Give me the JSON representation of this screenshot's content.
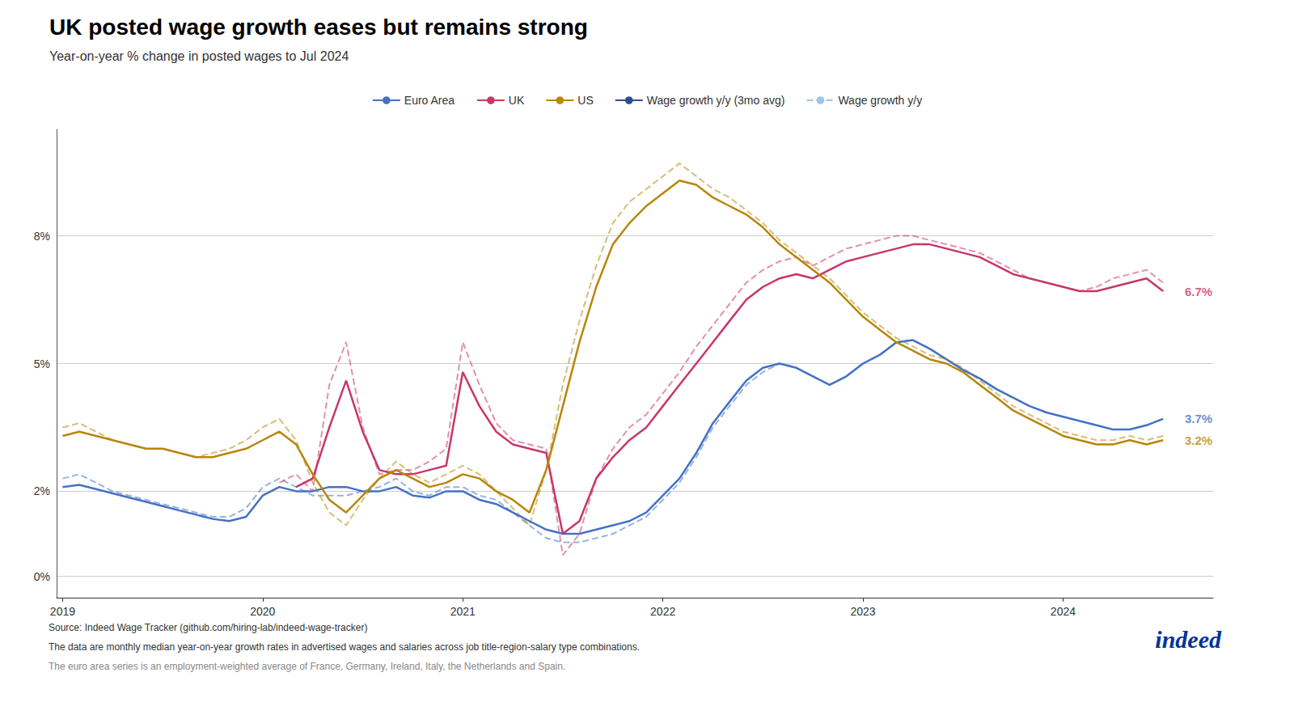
{
  "chart_data": {
    "type": "line",
    "title": "UK posted wage growth eases but remains strong",
    "subtitle": "Year-on-year % change in posted wages to Jul 2024",
    "footnotes": [
      "Source: Indeed Wage Tracker (github.com/hiring-lab/indeed-wage-tracker)",
      "The data are monthly median year-on-year growth rates in advertised wages and salaries across job title-region-salary type combinations.",
      "The euro area series is an employment-weighted average of France, Germany, Ireland, Italy, the Netherlands and Spain."
    ],
    "logo": "indeed",
    "grid": true,
    "legend": "top",
    "xlim": [
      2018.97,
      2024.75
    ],
    "xticks": [
      2019,
      2020,
      2021,
      2022,
      2023,
      2024
    ],
    "ylim": [
      -0.5,
      10.5
    ],
    "yticks": [
      {
        "value": 0,
        "label": "0%"
      },
      {
        "value": 2,
        "label": "2%"
      },
      {
        "value": 5,
        "label": "5%"
      },
      {
        "value": 8,
        "label": "8%"
      }
    ],
    "series": [
      {
        "name": "Euro Area",
        "color": "#4472c4",
        "line_style": "solid",
        "x": [
          2019,
          2019.083,
          2019.167,
          2019.25,
          2019.333,
          2019.417,
          2019.5,
          2019.583,
          2019.667,
          2019.75,
          2019.833,
          2019.917,
          2020,
          2020.083,
          2020.167,
          2020.25,
          2020.333,
          2020.417,
          2020.5,
          2020.583,
          2020.667,
          2020.75,
          2020.833,
          2020.917,
          2021,
          2021.083,
          2021.167,
          2021.25,
          2021.333,
          2021.417,
          2021.5,
          2021.583,
          2021.667,
          2021.75,
          2021.833,
          2021.917,
          2022,
          2022.083,
          2022.167,
          2022.25,
          2022.333,
          2022.417,
          2022.5,
          2022.583,
          2022.667,
          2022.75,
          2022.833,
          2022.917,
          2023,
          2023.083,
          2023.167,
          2023.25,
          2023.333,
          2023.417,
          2023.5,
          2023.583,
          2023.667,
          2023.75,
          2023.833,
          2023.917,
          2024,
          2024.083,
          2024.167,
          2024.25,
          2024.333,
          2024.417,
          2024.5
        ],
        "values": [
          2.1,
          2.15,
          2.05,
          1.95,
          1.85,
          1.75,
          1.65,
          1.55,
          1.45,
          1.35,
          1.3,
          1.4,
          1.9,
          2.1,
          2.0,
          2.0,
          2.1,
          2.1,
          2.0,
          2.0,
          2.1,
          1.9,
          1.85,
          2.0,
          2.0,
          1.8,
          1.7,
          1.5,
          1.3,
          1.1,
          1.0,
          1.0,
          1.1,
          1.2,
          1.3,
          1.5,
          1.9,
          2.3,
          2.9,
          3.6,
          4.1,
          4.6,
          4.9,
          5.0,
          4.9,
          4.7,
          4.5,
          4.7,
          5.0,
          5.2,
          5.5,
          5.55,
          5.35,
          5.1,
          4.85,
          4.65,
          4.4,
          4.2,
          4.0,
          3.85,
          3.75,
          3.65,
          3.55,
          3.45,
          3.45,
          3.55,
          3.7
        ]
      },
      {
        "name": "Euro Area",
        "color": "#4472c4",
        "line_style": "dashed",
        "x": [
          2019,
          2019.083,
          2019.167,
          2019.25,
          2019.333,
          2019.417,
          2019.5,
          2019.583,
          2019.667,
          2019.75,
          2019.833,
          2019.917,
          2020,
          2020.083,
          2020.167,
          2020.25,
          2020.333,
          2020.417,
          2020.5,
          2020.583,
          2020.667,
          2020.75,
          2020.833,
          2020.917,
          2021,
          2021.083,
          2021.167,
          2021.25,
          2021.333,
          2021.417,
          2021.5,
          2021.583,
          2021.667,
          2021.75,
          2021.833,
          2021.917,
          2022,
          2022.083,
          2022.167,
          2022.25,
          2022.333,
          2022.417,
          2022.5,
          2022.583,
          2022.667,
          2022.75,
          2022.833,
          2022.917,
          2023,
          2023.083,
          2023.167,
          2023.25,
          2023.333,
          2023.417,
          2023.5,
          2023.583,
          2023.667,
          2023.75,
          2023.833,
          2023.917,
          2024,
          2024.083,
          2024.167,
          2024.25,
          2024.333,
          2024.417,
          2024.5
        ],
        "values": [
          2.3,
          2.4,
          2.2,
          2.0,
          1.9,
          1.8,
          1.7,
          1.6,
          1.5,
          1.4,
          1.4,
          1.6,
          2.1,
          2.3,
          2.1,
          1.9,
          1.9,
          1.9,
          2.0,
          2.1,
          2.3,
          2.0,
          1.9,
          2.1,
          2.1,
          1.9,
          1.8,
          1.5,
          1.2,
          0.9,
          0.8,
          0.8,
          0.9,
          1.0,
          1.2,
          1.4,
          1.8,
          2.2,
          2.8,
          3.5,
          4.0,
          4.5,
          4.8,
          5.0,
          4.9,
          4.7,
          4.5,
          4.7,
          5.0,
          5.2,
          5.5,
          5.55,
          5.35,
          5.1,
          4.85,
          4.65,
          4.4,
          4.2,
          4.0,
          3.85,
          3.75,
          3.65,
          3.55,
          3.45,
          3.45,
          3.55,
          3.7
        ]
      },
      {
        "name": "UK",
        "color": "#c9366b",
        "line_style": "solid",
        "x": [
          2020.167,
          2020.25,
          2020.333,
          2020.417,
          2020.5,
          2020.583,
          2020.667,
          2020.75,
          2020.833,
          2020.917,
          2021,
          2021.083,
          2021.167,
          2021.25,
          2021.333,
          2021.417,
          2021.5,
          2021.583,
          2021.667,
          2021.75,
          2021.833,
          2021.917,
          2022,
          2022.083,
          2022.167,
          2022.25,
          2022.333,
          2022.417,
          2022.5,
          2022.583,
          2022.667,
          2022.75,
          2022.833,
          2022.917,
          2023,
          2023.083,
          2023.167,
          2023.25,
          2023.333,
          2023.417,
          2023.5,
          2023.583,
          2023.667,
          2023.75,
          2023.833,
          2023.917,
          2024,
          2024.083,
          2024.167,
          2024.25,
          2024.333,
          2024.417,
          2024.5
        ],
        "values": [
          2.1,
          2.3,
          3.5,
          4.6,
          3.4,
          2.5,
          2.4,
          2.4,
          2.5,
          2.6,
          4.8,
          4.0,
          3.4,
          3.1,
          3.0,
          2.9,
          1.0,
          1.3,
          2.3,
          2.8,
          3.2,
          3.5,
          4.0,
          4.5,
          5.0,
          5.5,
          6.0,
          6.5,
          6.8,
          7.0,
          7.1,
          7.0,
          7.2,
          7.4,
          7.5,
          7.6,
          7.7,
          7.8,
          7.8,
          7.7,
          7.6,
          7.5,
          7.3,
          7.1,
          7.0,
          6.9,
          6.8,
          6.7,
          6.7,
          6.8,
          6.9,
          7.0,
          6.7
        ]
      },
      {
        "name": "UK",
        "color": "#c9366b",
        "line_style": "dashed",
        "x": [
          2020.083,
          2020.167,
          2020.25,
          2020.333,
          2020.417,
          2020.5,
          2020.583,
          2020.667,
          2020.75,
          2020.833,
          2020.917,
          2021,
          2021.083,
          2021.167,
          2021.25,
          2021.333,
          2021.417,
          2021.5,
          2021.583,
          2021.667,
          2021.75,
          2021.833,
          2021.917,
          2022,
          2022.083,
          2022.167,
          2022.25,
          2022.333,
          2022.417,
          2022.5,
          2022.583,
          2022.667,
          2022.75,
          2022.833,
          2022.917,
          2023,
          2023.083,
          2023.167,
          2023.25,
          2023.333,
          2023.417,
          2023.5,
          2023.583,
          2023.667,
          2023.75,
          2023.833,
          2023.917,
          2024,
          2024.083,
          2024.167,
          2024.25,
          2024.333,
          2024.417,
          2024.5
        ],
        "values": [
          2.2,
          2.4,
          2.0,
          4.5,
          5.5,
          3.5,
          2.4,
          2.5,
          2.5,
          2.7,
          3.0,
          5.5,
          4.5,
          3.6,
          3.2,
          3.1,
          3.0,
          0.5,
          1.0,
          2.3,
          3.0,
          3.5,
          3.8,
          4.3,
          4.8,
          5.4,
          5.9,
          6.4,
          6.9,
          7.2,
          7.4,
          7.5,
          7.3,
          7.5,
          7.7,
          7.8,
          7.9,
          8.0,
          8.0,
          7.9,
          7.8,
          7.7,
          7.6,
          7.4,
          7.2,
          7.0,
          6.9,
          6.8,
          6.7,
          6.8,
          7.0,
          7.1,
          7.2,
          6.9
        ]
      },
      {
        "name": "US",
        "color": "#b8860b",
        "line_style": "solid",
        "x": [
          2019,
          2019.083,
          2019.167,
          2019.25,
          2019.333,
          2019.417,
          2019.5,
          2019.583,
          2019.667,
          2019.75,
          2019.833,
          2019.917,
          2020,
          2020.083,
          2020.167,
          2020.25,
          2020.333,
          2020.417,
          2020.5,
          2020.583,
          2020.667,
          2020.75,
          2020.833,
          2020.917,
          2021,
          2021.083,
          2021.167,
          2021.25,
          2021.333,
          2021.417,
          2021.5,
          2021.583,
          2021.667,
          2021.75,
          2021.833,
          2021.917,
          2022,
          2022.083,
          2022.167,
          2022.25,
          2022.333,
          2022.417,
          2022.5,
          2022.583,
          2022.667,
          2022.75,
          2022.833,
          2022.917,
          2023,
          2023.083,
          2023.167,
          2023.25,
          2023.333,
          2023.417,
          2023.5,
          2023.583,
          2023.667,
          2023.75,
          2023.833,
          2023.917,
          2024,
          2024.083,
          2024.167,
          2024.25,
          2024.333,
          2024.417,
          2024.5
        ],
        "values": [
          3.3,
          3.4,
          3.3,
          3.2,
          3.1,
          3.0,
          3.0,
          2.9,
          2.8,
          2.8,
          2.9,
          3.0,
          3.2,
          3.4,
          3.1,
          2.4,
          1.8,
          1.5,
          1.9,
          2.3,
          2.5,
          2.3,
          2.1,
          2.2,
          2.4,
          2.3,
          2.0,
          1.8,
          1.5,
          2.5,
          4.0,
          5.5,
          6.8,
          7.8,
          8.3,
          8.7,
          9.0,
          9.3,
          9.2,
          8.9,
          8.7,
          8.5,
          8.2,
          7.8,
          7.5,
          7.2,
          6.9,
          6.5,
          6.1,
          5.8,
          5.5,
          5.3,
          5.1,
          5.0,
          4.8,
          4.5,
          4.2,
          3.9,
          3.7,
          3.5,
          3.3,
          3.2,
          3.1,
          3.1,
          3.2,
          3.1,
          3.2
        ]
      },
      {
        "name": "US",
        "color": "#b8860b",
        "line_style": "dashed",
        "x": [
          2019,
          2019.083,
          2019.167,
          2019.25,
          2019.333,
          2019.417,
          2019.5,
          2019.583,
          2019.667,
          2019.75,
          2019.833,
          2019.917,
          2020,
          2020.083,
          2020.167,
          2020.25,
          2020.333,
          2020.417,
          2020.5,
          2020.583,
          2020.667,
          2020.75,
          2020.833,
          2020.917,
          2021,
          2021.083,
          2021.167,
          2021.25,
          2021.333,
          2021.417,
          2021.5,
          2021.583,
          2021.667,
          2021.75,
          2021.833,
          2021.917,
          2022,
          2022.083,
          2022.167,
          2022.25,
          2022.333,
          2022.417,
          2022.5,
          2022.583,
          2022.667,
          2022.75,
          2022.833,
          2022.917,
          2023,
          2023.083,
          2023.167,
          2023.25,
          2023.333,
          2023.417,
          2023.5,
          2023.583,
          2023.667,
          2023.75,
          2023.833,
          2023.917,
          2024,
          2024.083,
          2024.167,
          2024.25,
          2024.333,
          2024.417,
          2024.5
        ],
        "values": [
          3.5,
          3.6,
          3.4,
          3.2,
          3.1,
          3.0,
          3.0,
          2.9,
          2.8,
          2.9,
          3.0,
          3.2,
          3.5,
          3.7,
          3.2,
          2.2,
          1.5,
          1.2,
          1.8,
          2.3,
          2.7,
          2.4,
          2.2,
          2.4,
          2.6,
          2.4,
          2.0,
          1.6,
          1.2,
          2.5,
          4.5,
          6.0,
          7.3,
          8.3,
          8.8,
          9.1,
          9.4,
          9.7,
          9.4,
          9.1,
          8.9,
          8.6,
          8.3,
          7.9,
          7.6,
          7.3,
          7.0,
          6.6,
          6.2,
          5.9,
          5.6,
          5.4,
          5.2,
          5.1,
          4.9,
          4.6,
          4.3,
          4.0,
          3.8,
          3.6,
          3.4,
          3.3,
          3.2,
          3.2,
          3.3,
          3.2,
          3.3
        ]
      }
    ],
    "legend_keys": [
      {
        "name": "Wage growth y/y (3mo avg)",
        "color": "#2e4d8e",
        "line_style": "solid"
      },
      {
        "name": "Wage growth y/y",
        "color": "#9dc3e6",
        "line_style": "dashed"
      }
    ],
    "annotations": [
      {
        "x": 2024.6,
        "y": 6.7,
        "text": "6.7%",
        "color": "#c9366b"
      },
      {
        "x": 2024.6,
        "y": 3.7,
        "text": "3.7%",
        "color": "#4472c4"
      },
      {
        "x": 2024.6,
        "y": 3.2,
        "text": "3.2%",
        "color": "#b8860b"
      }
    ]
  }
}
